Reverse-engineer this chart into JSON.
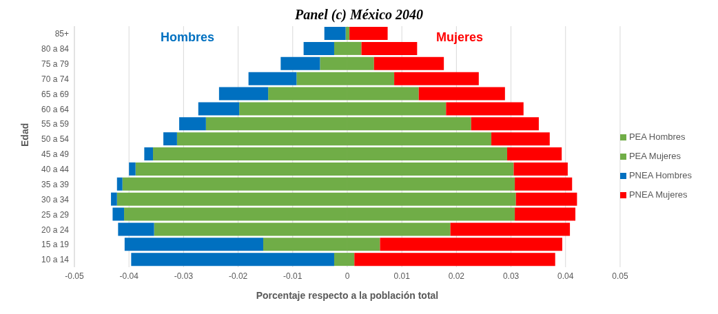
{
  "chart_data": {
    "type": "bar",
    "title": "Panel (c) México 2040",
    "xlabel": "Porcentaje respecto a la población total",
    "ylabel": "Edad",
    "orientation": "horizontal",
    "stacked": true,
    "categories": [
      "85+",
      "80 a 84",
      "75 a 79",
      "70 a 74",
      "65 a 69",
      "60 a 64",
      "55 a 59",
      "50 a 54",
      "45 a 49",
      "40 a 44",
      "35 a 39",
      "30 a 34",
      "25 a 29",
      "20 a 24",
      "15 a 19",
      "10 a 14"
    ],
    "series": [
      {
        "name": "PEA Hombres",
        "color": "#70ad47",
        "values": [
          -0.0003,
          -0.0024,
          -0.005,
          -0.0093,
          -0.0145,
          -0.0198,
          -0.0259,
          -0.0312,
          -0.0356,
          -0.0388,
          -0.0412,
          -0.0422,
          -0.0409,
          -0.0354,
          -0.0154,
          -0.0024
        ]
      },
      {
        "name": "PNEA Hombres",
        "color": "#0070c0",
        "values": [
          -0.0039,
          -0.0056,
          -0.0072,
          -0.0088,
          -0.009,
          -0.0075,
          -0.0049,
          -0.0025,
          -0.0016,
          -0.0012,
          -0.001,
          -0.0011,
          -0.0021,
          -0.0066,
          -0.0254,
          -0.0372
        ]
      },
      {
        "name": "PEA Mujeres",
        "color": "#70ad47",
        "values": [
          0.0004,
          0.0026,
          0.0049,
          0.0086,
          0.0131,
          0.0181,
          0.0227,
          0.0264,
          0.0293,
          0.0305,
          0.0307,
          0.0309,
          0.0307,
          0.0189,
          0.006,
          0.0013
        ]
      },
      {
        "name": "PNEA Mujeres",
        "color": "#ff0000",
        "values": [
          0.007,
          0.0102,
          0.0128,
          0.0155,
          0.0158,
          0.0142,
          0.0124,
          0.0107,
          0.01,
          0.0099,
          0.0105,
          0.0112,
          0.0111,
          0.0219,
          0.0334,
          0.0368
        ]
      }
    ],
    "xlim": [
      -0.05,
      0.05
    ],
    "xticks": [
      -0.05,
      -0.04,
      -0.03,
      -0.02,
      -0.01,
      0,
      0.01,
      0.02,
      0.03,
      0.04,
      0.05
    ],
    "annotations": [
      "Hombres",
      "Mujeres"
    ],
    "grid": "x",
    "legend": "right"
  }
}
